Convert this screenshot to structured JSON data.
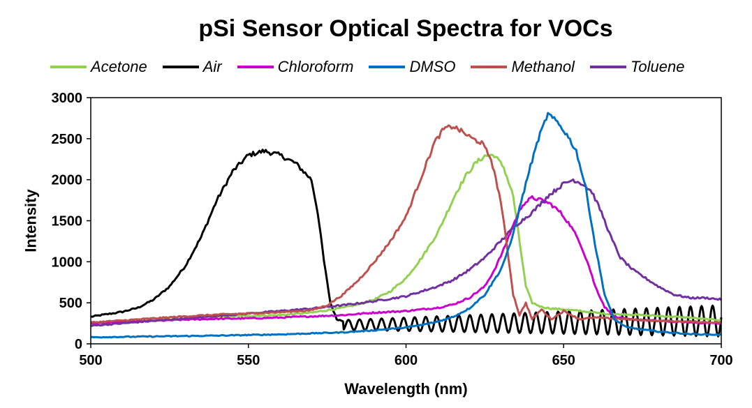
{
  "chart_data": {
    "type": "line",
    "title": "pSi Sensor Optical Spectra for VOCs",
    "xlabel": "Wavelength (nm)",
    "ylabel": "Intensity",
    "xlim": [
      500,
      700
    ],
    "ylim": [
      0,
      3000
    ],
    "xticks": [
      500,
      550,
      600,
      650,
      700
    ],
    "yticks": [
      0,
      500,
      1000,
      1500,
      2000,
      2500,
      3000
    ],
    "grid": false,
    "legend": "top",
    "series": [
      {
        "name": "Acetone",
        "color": "#92d050",
        "x": [
          500,
          510,
          520,
          530,
          540,
          550,
          560,
          570,
          575,
          580,
          585,
          590,
          595,
          600,
          605,
          610,
          613,
          616,
          619,
          622,
          625,
          628,
          631,
          634,
          636,
          638,
          640,
          643,
          646,
          650,
          655,
          660,
          665,
          670,
          675,
          680,
          685,
          690,
          695,
          700
        ],
        "y": [
          250,
          270,
          290,
          310,
          330,
          340,
          350,
          380,
          410,
          440,
          480,
          540,
          640,
          800,
          1050,
          1350,
          1600,
          1850,
          2050,
          2200,
          2290,
          2300,
          2150,
          1800,
          1250,
          700,
          500,
          450,
          430,
          420,
          400,
          380,
          360,
          360,
          350,
          340,
          330,
          320,
          300,
          290
        ]
      },
      {
        "name": "Air",
        "color": "#000000",
        "x": [
          500,
          505,
          510,
          515,
          520,
          525,
          530,
          535,
          540,
          545,
          550,
          555,
          560,
          565,
          570,
          572,
          574,
          576,
          578,
          580
        ],
        "y": [
          330,
          360,
          390,
          440,
          540,
          700,
          950,
          1300,
          1750,
          2100,
          2300,
          2350,
          2300,
          2200,
          2000,
          1600,
          1000,
          500,
          300,
          280
        ],
        "osc": {
          "x_start": 580,
          "x_end": 700,
          "period": 3.5,
          "mean_start": 230,
          "mean_end": 280,
          "amp_start": 60,
          "amp_end": 190
        }
      },
      {
        "name": "Chloroform",
        "color": "#cc00cc",
        "x": [
          500,
          510,
          520,
          530,
          540,
          550,
          560,
          570,
          580,
          590,
          600,
          605,
          610,
          615,
          620,
          625,
          628,
          631,
          634,
          637,
          640,
          643,
          646,
          649,
          652,
          655,
          658,
          660,
          663,
          666,
          670,
          680,
          690,
          700
        ],
        "y": [
          250,
          265,
          280,
          295,
          305,
          310,
          320,
          335,
          350,
          380,
          400,
          420,
          440,
          480,
          560,
          700,
          900,
          1150,
          1450,
          1700,
          1780,
          1750,
          1700,
          1600,
          1450,
          1250,
          950,
          700,
          450,
          330,
          300,
          280,
          260,
          250
        ]
      },
      {
        "name": "DMSO",
        "color": "#0070c0",
        "x": [
          500,
          520,
          540,
          560,
          580,
          590,
          600,
          605,
          610,
          615,
          620,
          625,
          630,
          633,
          636,
          639,
          642,
          645,
          648,
          651,
          654,
          657,
          660,
          663,
          666,
          670,
          680,
          690,
          700
        ],
        "y": [
          80,
          90,
          100,
          115,
          140,
          165,
          200,
          230,
          270,
          330,
          430,
          600,
          900,
          1200,
          1650,
          2100,
          2500,
          2800,
          2700,
          2550,
          2350,
          1900,
          1200,
          600,
          300,
          200,
          150,
          120,
          110
        ]
      },
      {
        "name": "Methanol",
        "color": "#c0504d",
        "x": [
          500,
          510,
          520,
          530,
          540,
          550,
          560,
          570,
          575,
          580,
          585,
          590,
          595,
          600,
          603,
          606,
          609,
          612,
          615,
          618,
          621,
          624,
          627,
          630,
          632,
          634,
          636,
          638,
          640,
          643,
          646,
          650,
          655,
          660,
          670,
          680,
          690,
          700
        ],
        "y": [
          260,
          285,
          310,
          335,
          355,
          370,
          385,
          410,
          470,
          600,
          780,
          1000,
          1250,
          1550,
          1850,
          2150,
          2450,
          2620,
          2650,
          2580,
          2500,
          2450,
          2250,
          1750,
          1200,
          600,
          350,
          500,
          300,
          420,
          300,
          400,
          300,
          320,
          300,
          280,
          270,
          260
        ]
      },
      {
        "name": "Toluene",
        "color": "#7030a0",
        "x": [
          500,
          510,
          520,
          530,
          540,
          550,
          560,
          570,
          580,
          590,
          600,
          605,
          610,
          615,
          620,
          625,
          630,
          635,
          640,
          645,
          650,
          653,
          656,
          659,
          662,
          665,
          668,
          672,
          676,
          680,
          685,
          690,
          695,
          700
        ],
        "y": [
          220,
          250,
          280,
          310,
          340,
          370,
          400,
          430,
          470,
          520,
          580,
          640,
          700,
          780,
          900,
          1050,
          1250,
          1450,
          1600,
          1800,
          1950,
          2000,
          1950,
          1850,
          1600,
          1300,
          1050,
          900,
          800,
          700,
          600,
          560,
          560,
          540
        ]
      }
    ]
  }
}
